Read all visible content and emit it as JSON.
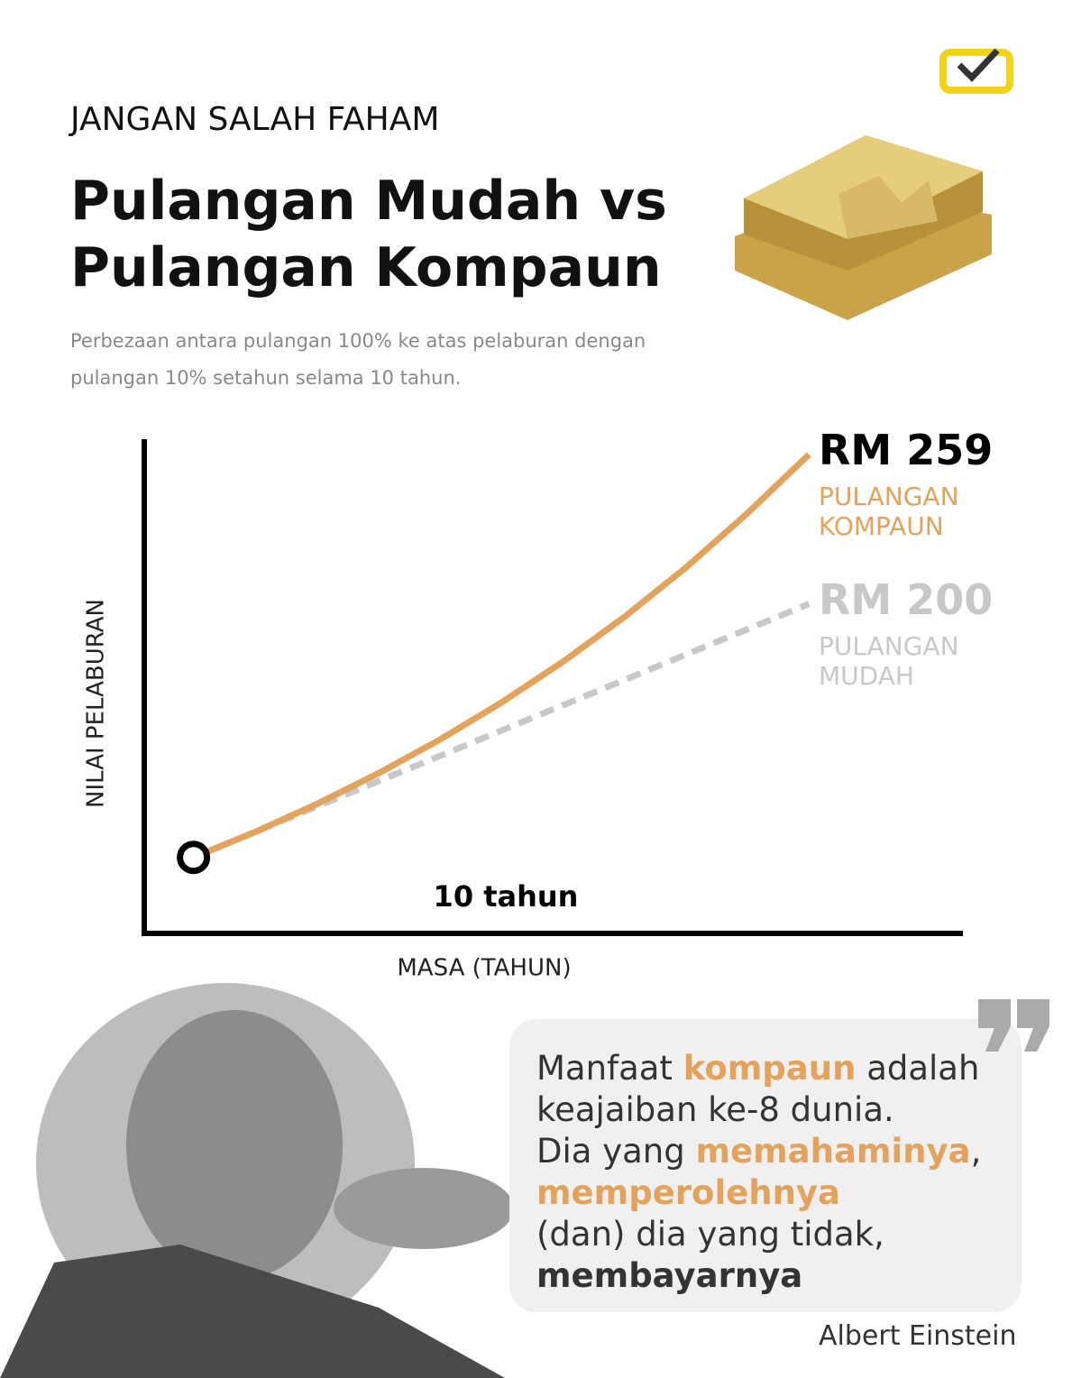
{
  "header": {
    "kicker": "JANGAN SALAH FAHAM",
    "title_lines": [
      "Pulangan Mudah vs",
      "Pulangan Kompaun"
    ],
    "subtitle_lines": [
      "Perbezaan antara pulangan 100% ke atas pelaburan dengan",
      "pulangan 10% setahun selama 10 tahun."
    ]
  },
  "chart_data": {
    "type": "line",
    "x_label": "MASA (TAHUN)",
    "y_label": "NILAI PELABURAN",
    "annotation": "10 tahun",
    "x": [
      0,
      1,
      2,
      3,
      4,
      5,
      6,
      7,
      8,
      9,
      10
    ],
    "xlim": [
      -0.8,
      12.5
    ],
    "ylim": [
      70,
      265
    ],
    "series": [
      {
        "name": "PULANGAN KOMPAUN",
        "color": "#e3a35c",
        "style": "solid",
        "values": [
          100,
          110,
          121,
          133.1,
          146.41,
          161.05,
          177.16,
          194.87,
          214.36,
          235.79,
          259
        ],
        "value_labels": [
          null,
          null,
          null,
          null,
          null,
          null,
          null,
          null,
          null,
          null,
          "RM 259"
        ],
        "label_color": "#000000"
      },
      {
        "name": "PULANGAN MUDAH",
        "color": "#c8c8c8",
        "style": "dashed",
        "values": [
          100,
          110,
          120,
          130,
          140,
          150,
          160,
          170,
          180,
          190,
          200
        ],
        "value_labels": [
          null,
          null,
          null,
          null,
          null,
          null,
          null,
          null,
          null,
          null,
          "RM 200"
        ],
        "label_color": "#c8c8c8"
      }
    ]
  },
  "quote": {
    "lines": [
      [
        {
          "text": "Manfaat "
        },
        {
          "text": "kompaun",
          "em": "orange"
        },
        {
          "text": " adalah"
        }
      ],
      [
        {
          "text": "keajaiban ke-8 dunia."
        }
      ],
      [
        {
          "text": "Dia yang "
        },
        {
          "text": "memahaminya",
          "em": "orange"
        },
        {
          "text": ","
        }
      ],
      [
        {
          "text": "memperolehnya",
          "em": "orange"
        }
      ],
      [
        {
          "text": "(dan) dia yang tidak,"
        }
      ],
      [
        {
          "text": "membayarnya",
          "em": "dark"
        }
      ]
    ],
    "author": "Albert Einstein"
  }
}
